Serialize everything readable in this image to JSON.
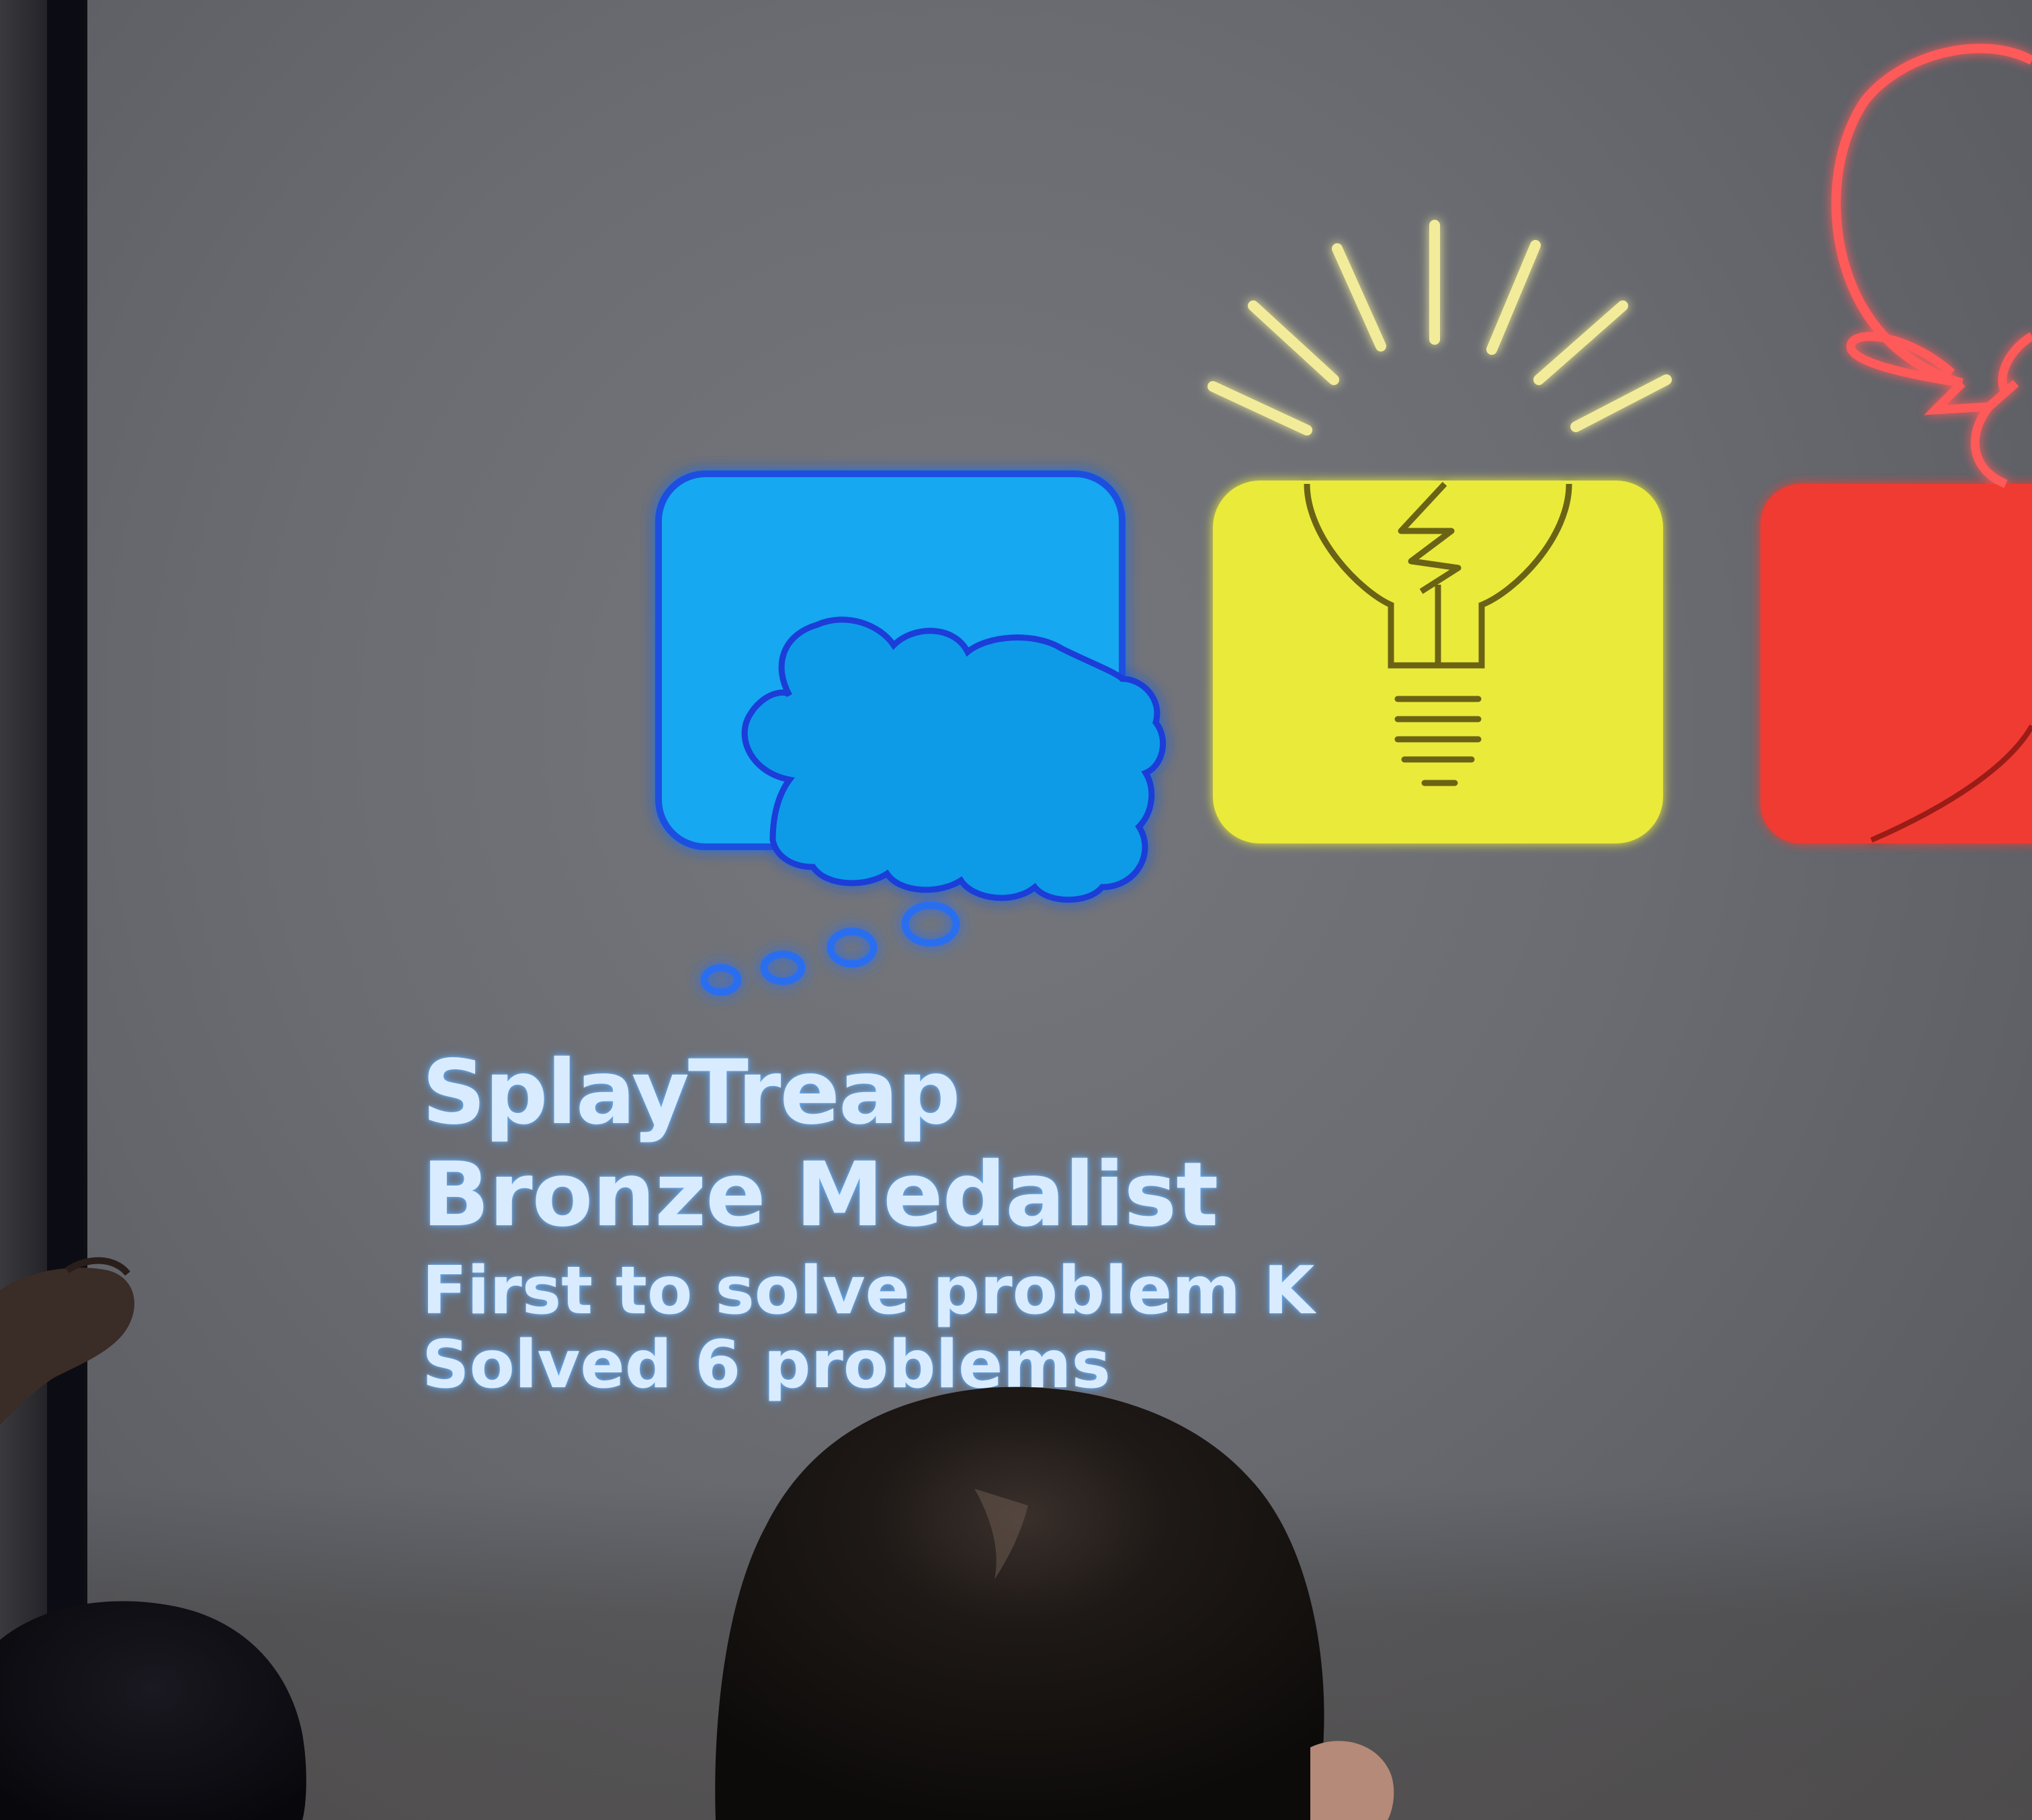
{
  "slide": {
    "team_name": "SplayTreap",
    "award": "Bronze Medalist",
    "first_solve": "First to solve problem K",
    "solved_count": "Solved 6 problems"
  },
  "icons": [
    {
      "name": "thought-bubble-icon",
      "color": "#12a8f0"
    },
    {
      "name": "lightbulb-icon",
      "color": "#eaea3a"
    },
    {
      "name": "balloon-icon",
      "color": "#f03a32"
    }
  ]
}
